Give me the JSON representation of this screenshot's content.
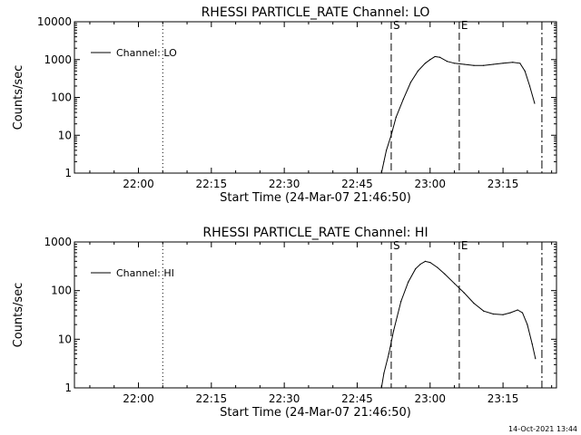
{
  "timestamp": "14-Oct-2021 13:44",
  "chart_data": [
    {
      "type": "line",
      "title": "RHESSI PARTICLE_RATE Channel: LO",
      "xlabel": "Start Time (24-Mar-07 21:46:50)",
      "ylabel": "Counts/sec",
      "y_scale": "log",
      "ylim": [
        1,
        10000
      ],
      "y_ticks": [
        1,
        10,
        100,
        1000,
        10000
      ],
      "y_tick_labels": [
        "1",
        "10",
        "100",
        "1000",
        "10000"
      ],
      "xlim": [
        "21:46:50",
        "23:26:00"
      ],
      "x_ticks": [
        "22:00",
        "22:15",
        "22:30",
        "22:45",
        "23:00",
        "23:15"
      ],
      "legend": {
        "position": "top-left",
        "entries": [
          "Channel: LO"
        ]
      },
      "markers": [
        {
          "time": "22:05:00",
          "style": "dotted",
          "label": ""
        },
        {
          "time": "22:52:00",
          "style": "dashed",
          "label": "S"
        },
        {
          "time": "23:06:00",
          "style": "dashed",
          "label": "E"
        },
        {
          "time": "23:23:00",
          "style": "dashdot",
          "label": ""
        }
      ],
      "series": [
        {
          "name": "Channel: LO",
          "points": [
            [
              "22:50:00",
              1
            ],
            [
              "22:50:30",
              2
            ],
            [
              "22:51:00",
              4
            ],
            [
              "22:52:00",
              10
            ],
            [
              "22:53:00",
              30
            ],
            [
              "22:54:30",
              90
            ],
            [
              "22:56:00",
              250
            ],
            [
              "22:57:30",
              500
            ],
            [
              "22:59:00",
              800
            ],
            [
              "23:00:00",
              1000
            ],
            [
              "23:01:00",
              1200
            ],
            [
              "23:02:00",
              1150
            ],
            [
              "23:03:30",
              900
            ],
            [
              "23:05:00",
              800
            ],
            [
              "23:07:00",
              750
            ],
            [
              "23:09:00",
              700
            ],
            [
              "23:11:00",
              700
            ],
            [
              "23:13:00",
              750
            ],
            [
              "23:15:00",
              800
            ],
            [
              "23:17:00",
              850
            ],
            [
              "23:18:30",
              800
            ],
            [
              "23:19:30",
              500
            ],
            [
              "23:20:30",
              200
            ],
            [
              "23:21:30",
              70
            ]
          ]
        }
      ]
    },
    {
      "type": "line",
      "title": "RHESSI PARTICLE_RATE Channel: HI",
      "xlabel": "Start Time (24-Mar-07 21:46:50)",
      "ylabel": "Counts/sec",
      "y_scale": "log",
      "ylim": [
        1,
        1000
      ],
      "y_ticks": [
        1,
        10,
        100,
        1000
      ],
      "y_tick_labels": [
        "1",
        "10",
        "100",
        "1000"
      ],
      "xlim": [
        "21:46:50",
        "23:26:00"
      ],
      "x_ticks": [
        "22:00",
        "22:15",
        "22:30",
        "22:45",
        "23:00",
        "23:15"
      ],
      "legend": {
        "position": "top-left",
        "entries": [
          "Channel: HI"
        ]
      },
      "markers": [
        {
          "time": "22:05:00",
          "style": "dotted",
          "label": ""
        },
        {
          "time": "22:52:00",
          "style": "dashed",
          "label": "S"
        },
        {
          "time": "23:06:00",
          "style": "dashed",
          "label": "E"
        },
        {
          "time": "23:23:00",
          "style": "dashdot",
          "label": ""
        }
      ],
      "series": [
        {
          "name": "Channel: HI",
          "points": [
            [
              "22:50:00",
              1
            ],
            [
              "22:50:30",
              2
            ],
            [
              "22:51:30",
              5
            ],
            [
              "22:52:30",
              15
            ],
            [
              "22:54:00",
              60
            ],
            [
              "22:55:30",
              150
            ],
            [
              "22:57:00",
              280
            ],
            [
              "22:58:00",
              350
            ],
            [
              "22:59:00",
              400
            ],
            [
              "23:00:00",
              380
            ],
            [
              "23:01:30",
              300
            ],
            [
              "23:03:00",
              220
            ],
            [
              "23:05:00",
              140
            ],
            [
              "23:07:00",
              90
            ],
            [
              "23:09:00",
              55
            ],
            [
              "23:11:00",
              38
            ],
            [
              "23:13:00",
              33
            ],
            [
              "23:15:00",
              32
            ],
            [
              "23:16:30",
              35
            ],
            [
              "23:18:00",
              40
            ],
            [
              "23:19:00",
              35
            ],
            [
              "23:20:00",
              20
            ],
            [
              "23:21:00",
              8
            ],
            [
              "23:21:40",
              4
            ]
          ]
        }
      ]
    }
  ]
}
